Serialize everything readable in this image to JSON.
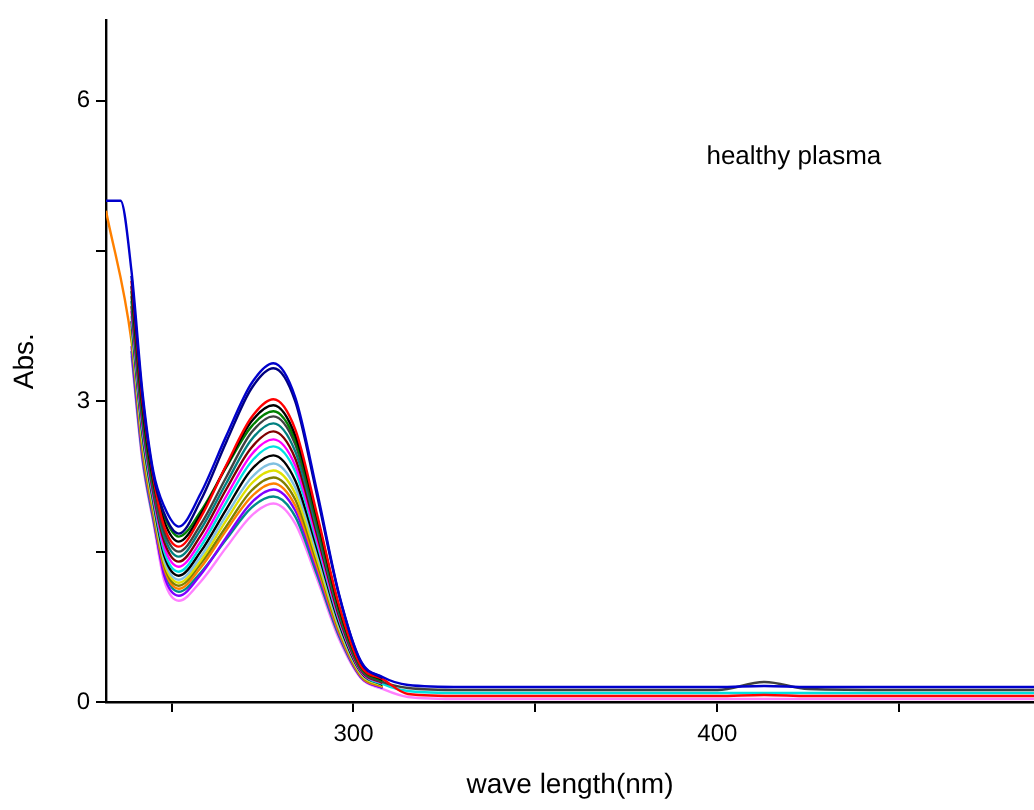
{
  "chart_data": {
    "type": "line",
    "xlabel": "wave length(nm)",
    "ylabel": "Abs.",
    "annotations": [
      "healthy plasma"
    ],
    "x": [
      232,
      236,
      239,
      242,
      245,
      248,
      252,
      258,
      265,
      272,
      278,
      284,
      290,
      296,
      302,
      308,
      315,
      330,
      370,
      400,
      413,
      425,
      450,
      487
    ],
    "xlim": [
      232,
      487
    ],
    "ylim": [
      0,
      6.8
    ],
    "xticks": [
      {
        "value": 250,
        "label": null
      },
      300,
      {
        "value": 350,
        "label": null
      },
      400,
      {
        "value": 450,
        "label": null
      }
    ],
    "yticks": [
      0,
      {
        "value": 1.5,
        "label": null
      },
      3,
      {
        "value": 4.5,
        "label": null
      },
      6
    ],
    "grid": false,
    "legend": false,
    "marker": "none",
    "line_style": "solid",
    "series": [
      {
        "color": "#0000cc",
        "values": [
          5.0,
          5.0,
          4.3,
          3.1,
          2.3,
          1.95,
          1.75,
          2.08,
          2.65,
          3.18,
          3.38,
          3.04,
          2.1,
          1.08,
          0.41,
          0.25,
          0.17,
          0.15,
          0.15,
          0.15,
          0.16,
          0.15,
          0.15,
          0.15
        ]
      },
      {
        "color": "#000080",
        "values": [
          null,
          null,
          4.25,
          3.05,
          2.27,
          1.88,
          1.68,
          2.01,
          2.59,
          3.13,
          3.33,
          3.0,
          2.06,
          1.07,
          0.4,
          0.24,
          null,
          null,
          null,
          null,
          null,
          null,
          null,
          null
        ]
      },
      {
        "color": "#ff0000",
        "values": [
          null,
          null,
          4.2,
          3.0,
          2.24,
          1.75,
          1.55,
          1.84,
          2.36,
          2.84,
          3.02,
          2.72,
          1.87,
          0.97,
          0.36,
          0.23,
          0.08,
          0.06,
          0.06,
          0.06,
          0.07,
          0.06,
          0.06,
          0.06
        ]
      },
      {
        "color": "#000000",
        "values": [
          null,
          null,
          4.15,
          2.96,
          2.21,
          1.8,
          1.6,
          1.87,
          2.35,
          2.8,
          2.96,
          2.66,
          1.84,
          0.95,
          0.36,
          0.22,
          null,
          null,
          null,
          null,
          null,
          null,
          null,
          null
        ]
      },
      {
        "color": "#008000",
        "values": [
          null,
          null,
          4.1,
          2.92,
          2.18,
          1.85,
          1.65,
          1.9,
          2.34,
          2.75,
          2.9,
          2.61,
          1.8,
          0.93,
          0.35,
          0.21,
          null,
          null,
          null,
          null,
          null,
          null,
          null,
          null
        ]
      },
      {
        "color": "#404040",
        "values": [
          null,
          null,
          4.05,
          2.88,
          2.15,
          1.7,
          1.5,
          1.77,
          2.24,
          2.69,
          2.85,
          2.57,
          1.77,
          0.91,
          0.34,
          0.2,
          0.14,
          0.12,
          0.12,
          0.12,
          0.2,
          0.13,
          0.12,
          0.12
        ]
      },
      {
        "color": "#008080",
        "values": [
          null,
          null,
          4.0,
          2.84,
          2.12,
          1.65,
          1.45,
          1.72,
          2.18,
          2.62,
          2.78,
          2.5,
          1.72,
          0.89,
          0.33,
          0.2,
          null,
          null,
          null,
          null,
          null,
          null,
          null,
          null
        ]
      },
      {
        "color": "#800000",
        "values": [
          null,
          null,
          3.95,
          2.8,
          2.09,
          1.6,
          1.4,
          1.66,
          2.12,
          2.54,
          2.7,
          2.43,
          1.67,
          0.86,
          0.32,
          0.19,
          null,
          null,
          null,
          null,
          null,
          null,
          null,
          null
        ]
      },
      {
        "color": "#ff00ff",
        "values": [
          null,
          null,
          3.9,
          2.76,
          2.06,
          1.55,
          1.35,
          1.6,
          2.05,
          2.47,
          2.62,
          2.36,
          1.62,
          0.84,
          0.31,
          0.19,
          null,
          null,
          null,
          null,
          null,
          null,
          null,
          null
        ]
      },
      {
        "color": "#00e0e0",
        "values": [
          null,
          null,
          3.85,
          2.72,
          2.03,
          1.5,
          1.3,
          1.55,
          1.99,
          2.4,
          2.55,
          2.3,
          1.58,
          0.82,
          0.31,
          0.18,
          0.11,
          0.09,
          0.09,
          0.09,
          0.09,
          0.09,
          0.09,
          0.09
        ]
      },
      {
        "color": "#000000",
        "values": [
          null,
          null,
          3.8,
          2.68,
          2.0,
          1.46,
          1.26,
          1.5,
          1.92,
          2.32,
          2.46,
          2.21,
          1.53,
          0.79,
          0.3,
          0.17,
          null,
          null,
          null,
          null,
          null,
          null,
          null,
          null
        ]
      },
      {
        "color": "#80c0e0",
        "values": [
          null,
          null,
          3.75,
          2.64,
          1.97,
          1.42,
          1.22,
          1.45,
          1.86,
          2.24,
          2.38,
          2.14,
          1.48,
          0.76,
          0.29,
          0.17,
          null,
          null,
          null,
          null,
          null,
          null,
          null,
          null
        ]
      },
      {
        "color": "#e0e000",
        "values": [
          null,
          null,
          3.7,
          2.6,
          1.94,
          1.39,
          1.19,
          1.41,
          1.81,
          2.18,
          2.31,
          2.08,
          1.43,
          0.74,
          0.28,
          0.16,
          null,
          null,
          null,
          null,
          null,
          null,
          null,
          null
        ]
      },
      {
        "color": "#808000",
        "values": [
          null,
          null,
          3.65,
          2.56,
          1.91,
          1.36,
          1.16,
          1.38,
          1.75,
          2.11,
          2.24,
          2.02,
          1.39,
          0.72,
          0.27,
          0.16,
          null,
          null,
          null,
          null,
          null,
          null,
          null,
          null
        ]
      },
      {
        "color": "#ff8000",
        "values": [
          4.9,
          null,
          3.6,
          2.52,
          1.88,
          1.33,
          1.13,
          1.34,
          1.71,
          2.05,
          2.18,
          1.96,
          1.35,
          0.7,
          0.26,
          0.15,
          null,
          null,
          null,
          null,
          null,
          null,
          null,
          null
        ]
      },
      {
        "color": "#8000ff",
        "values": [
          null,
          null,
          3.55,
          2.48,
          1.85,
          1.26,
          1.06,
          1.27,
          1.64,
          1.99,
          2.12,
          1.91,
          1.31,
          0.68,
          0.25,
          0.14,
          null,
          null,
          null,
          null,
          null,
          null,
          null,
          null
        ]
      },
      {
        "color": "#008b8b",
        "values": [
          null,
          null,
          3.5,
          2.44,
          1.82,
          1.3,
          1.1,
          1.29,
          1.62,
          1.94,
          2.05,
          1.85,
          1.27,
          0.66,
          0.25,
          0.14,
          null,
          null,
          null,
          null,
          null,
          null,
          null,
          null
        ]
      },
      {
        "color": "#ff80ff",
        "values": [
          null,
          null,
          3.45,
          2.4,
          1.79,
          1.21,
          1.01,
          1.2,
          1.54,
          1.86,
          1.98,
          1.78,
          1.23,
          0.63,
          0.24,
          0.13,
          0.05,
          0.03,
          0.03,
          0.03,
          0.03,
          0.03,
          0.03,
          0.03
        ]
      }
    ]
  }
}
